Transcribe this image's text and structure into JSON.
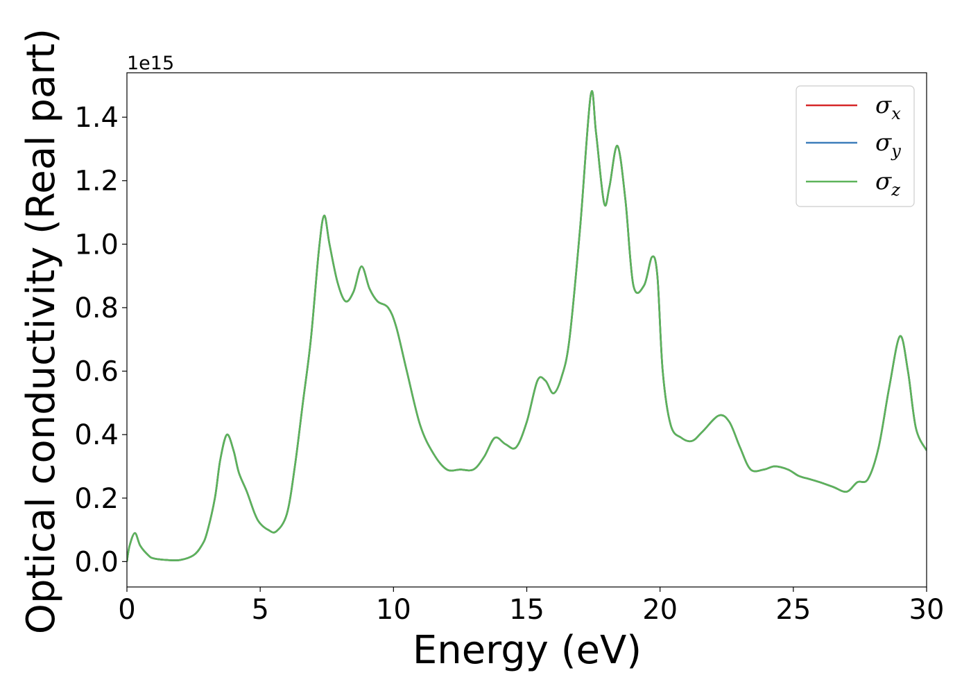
{
  "chart_data": {
    "type": "line",
    "xlabel": "Energy (eV)",
    "ylabel": "Optical conductivity (Real part)",
    "y_offset_text": "1e15",
    "xlim": [
      0,
      30
    ],
    "ylim": [
      -0.08,
      1.54
    ],
    "x_ticks": [
      0,
      5,
      10,
      15,
      20,
      25,
      30
    ],
    "x_tick_labels": [
      "0",
      "5",
      "10",
      "15",
      "20",
      "25",
      "30"
    ],
    "y_ticks": [
      0.0,
      0.2,
      0.4,
      0.6,
      0.8,
      1.0,
      1.2,
      1.4
    ],
    "y_tick_labels": [
      "0.0",
      "0.2",
      "0.4",
      "0.6",
      "0.8",
      "1.0",
      "1.2",
      "1.4"
    ],
    "grid": false,
    "legend_position": "top-right",
    "series": [
      {
        "name": "σx",
        "symbol": "σ",
        "subscript": "x",
        "color": "#d62728",
        "x": [
          0,
          0.1,
          0.3,
          0.5,
          0.8,
          1.0,
          1.5,
          2.0,
          2.5,
          2.8,
          3.0,
          3.3,
          3.5,
          3.75,
          4.0,
          4.2,
          4.5,
          4.8,
          5.0,
          5.3,
          5.6,
          6.0,
          6.3,
          6.6,
          6.9,
          7.2,
          7.4,
          7.6,
          7.9,
          8.2,
          8.5,
          8.8,
          9.1,
          9.4,
          9.8,
          10.1,
          10.5,
          11.0,
          11.5,
          12.0,
          12.5,
          13.0,
          13.4,
          13.8,
          14.2,
          14.6,
          15.0,
          15.4,
          15.7,
          16.0,
          16.3,
          16.6,
          17.0,
          17.4,
          17.6,
          17.9,
          18.1,
          18.4,
          18.7,
          19.0,
          19.4,
          19.7,
          19.9,
          20.1,
          20.4,
          20.8,
          21.2,
          21.6,
          22.2,
          22.6,
          23.0,
          23.4,
          23.9,
          24.3,
          24.8,
          25.2,
          25.6,
          26.0,
          26.5,
          27.0,
          27.4,
          27.8,
          28.2,
          28.6,
          29.0,
          29.3,
          29.6,
          30.0
        ],
        "values": [
          0.0,
          0.05,
          0.09,
          0.05,
          0.02,
          0.01,
          0.005,
          0.005,
          0.02,
          0.05,
          0.09,
          0.2,
          0.32,
          0.4,
          0.35,
          0.28,
          0.22,
          0.15,
          0.12,
          0.1,
          0.095,
          0.15,
          0.3,
          0.5,
          0.7,
          0.98,
          1.09,
          1.0,
          0.88,
          0.82,
          0.85,
          0.93,
          0.86,
          0.82,
          0.8,
          0.74,
          0.6,
          0.43,
          0.34,
          0.29,
          0.29,
          0.29,
          0.33,
          0.39,
          0.37,
          0.36,
          0.44,
          0.57,
          0.57,
          0.53,
          0.58,
          0.7,
          1.05,
          1.47,
          1.35,
          1.13,
          1.18,
          1.31,
          1.14,
          0.87,
          0.87,
          0.96,
          0.9,
          0.6,
          0.43,
          0.39,
          0.38,
          0.41,
          0.46,
          0.44,
          0.36,
          0.29,
          0.29,
          0.3,
          0.29,
          0.27,
          0.26,
          0.25,
          0.235,
          0.22,
          0.25,
          0.26,
          0.36,
          0.55,
          0.71,
          0.6,
          0.42,
          0.35
        ]
      },
      {
        "name": "σy",
        "symbol": "σ",
        "subscript": "y",
        "color": "#3c7dba",
        "x": [
          0,
          0.1,
          0.3,
          0.5,
          0.8,
          1.0,
          1.5,
          2.0,
          2.5,
          2.8,
          3.0,
          3.3,
          3.5,
          3.75,
          4.0,
          4.2,
          4.5,
          4.8,
          5.0,
          5.3,
          5.6,
          6.0,
          6.3,
          6.6,
          6.9,
          7.2,
          7.4,
          7.6,
          7.9,
          8.2,
          8.5,
          8.8,
          9.1,
          9.4,
          9.8,
          10.1,
          10.5,
          11.0,
          11.5,
          12.0,
          12.5,
          13.0,
          13.4,
          13.8,
          14.2,
          14.6,
          15.0,
          15.4,
          15.7,
          16.0,
          16.3,
          16.6,
          17.0,
          17.4,
          17.6,
          17.9,
          18.1,
          18.4,
          18.7,
          19.0,
          19.4,
          19.7,
          19.9,
          20.1,
          20.4,
          20.8,
          21.2,
          21.6,
          22.2,
          22.6,
          23.0,
          23.4,
          23.9,
          24.3,
          24.8,
          25.2,
          25.6,
          26.0,
          26.5,
          27.0,
          27.4,
          27.8,
          28.2,
          28.6,
          29.0,
          29.3,
          29.6,
          30.0
        ],
        "values": [
          0.0,
          0.05,
          0.09,
          0.05,
          0.02,
          0.01,
          0.005,
          0.005,
          0.02,
          0.05,
          0.09,
          0.2,
          0.32,
          0.4,
          0.35,
          0.28,
          0.22,
          0.15,
          0.12,
          0.1,
          0.095,
          0.15,
          0.3,
          0.5,
          0.7,
          0.98,
          1.09,
          1.0,
          0.88,
          0.82,
          0.85,
          0.93,
          0.86,
          0.82,
          0.8,
          0.74,
          0.6,
          0.43,
          0.34,
          0.29,
          0.29,
          0.29,
          0.33,
          0.39,
          0.37,
          0.36,
          0.44,
          0.57,
          0.57,
          0.53,
          0.58,
          0.7,
          1.05,
          1.47,
          1.35,
          1.13,
          1.18,
          1.31,
          1.14,
          0.87,
          0.87,
          0.96,
          0.9,
          0.6,
          0.43,
          0.39,
          0.38,
          0.41,
          0.46,
          0.44,
          0.36,
          0.29,
          0.29,
          0.3,
          0.29,
          0.27,
          0.26,
          0.25,
          0.235,
          0.22,
          0.25,
          0.26,
          0.36,
          0.55,
          0.71,
          0.6,
          0.42,
          0.35
        ]
      },
      {
        "name": "σz",
        "symbol": "σ",
        "subscript": "z",
        "color": "#5cb35a",
        "x": [
          0,
          0.1,
          0.3,
          0.5,
          0.8,
          1.0,
          1.5,
          2.0,
          2.5,
          2.8,
          3.0,
          3.3,
          3.5,
          3.75,
          4.0,
          4.2,
          4.5,
          4.8,
          5.0,
          5.3,
          5.6,
          6.0,
          6.3,
          6.6,
          6.9,
          7.2,
          7.4,
          7.6,
          7.9,
          8.2,
          8.5,
          8.8,
          9.1,
          9.4,
          9.8,
          10.1,
          10.5,
          11.0,
          11.5,
          12.0,
          12.5,
          13.0,
          13.4,
          13.8,
          14.2,
          14.6,
          15.0,
          15.4,
          15.7,
          16.0,
          16.3,
          16.6,
          17.0,
          17.4,
          17.6,
          17.9,
          18.1,
          18.4,
          18.7,
          19.0,
          19.4,
          19.7,
          19.9,
          20.1,
          20.4,
          20.8,
          21.2,
          21.6,
          22.2,
          22.6,
          23.0,
          23.4,
          23.9,
          24.3,
          24.8,
          25.2,
          25.6,
          26.0,
          26.5,
          27.0,
          27.4,
          27.8,
          28.2,
          28.6,
          29.0,
          29.3,
          29.6,
          30.0
        ],
        "values": [
          0.0,
          0.05,
          0.09,
          0.05,
          0.02,
          0.01,
          0.005,
          0.005,
          0.02,
          0.05,
          0.09,
          0.2,
          0.32,
          0.4,
          0.35,
          0.28,
          0.22,
          0.15,
          0.12,
          0.1,
          0.095,
          0.15,
          0.3,
          0.5,
          0.7,
          0.98,
          1.09,
          1.0,
          0.88,
          0.82,
          0.85,
          0.93,
          0.86,
          0.82,
          0.8,
          0.74,
          0.6,
          0.43,
          0.34,
          0.29,
          0.29,
          0.29,
          0.33,
          0.39,
          0.37,
          0.36,
          0.44,
          0.57,
          0.57,
          0.53,
          0.58,
          0.7,
          1.05,
          1.47,
          1.35,
          1.13,
          1.18,
          1.31,
          1.14,
          0.87,
          0.87,
          0.96,
          0.9,
          0.6,
          0.43,
          0.39,
          0.38,
          0.41,
          0.46,
          0.44,
          0.36,
          0.29,
          0.29,
          0.3,
          0.29,
          0.27,
          0.26,
          0.25,
          0.235,
          0.22,
          0.25,
          0.26,
          0.36,
          0.55,
          0.71,
          0.6,
          0.42,
          0.35
        ]
      }
    ]
  }
}
